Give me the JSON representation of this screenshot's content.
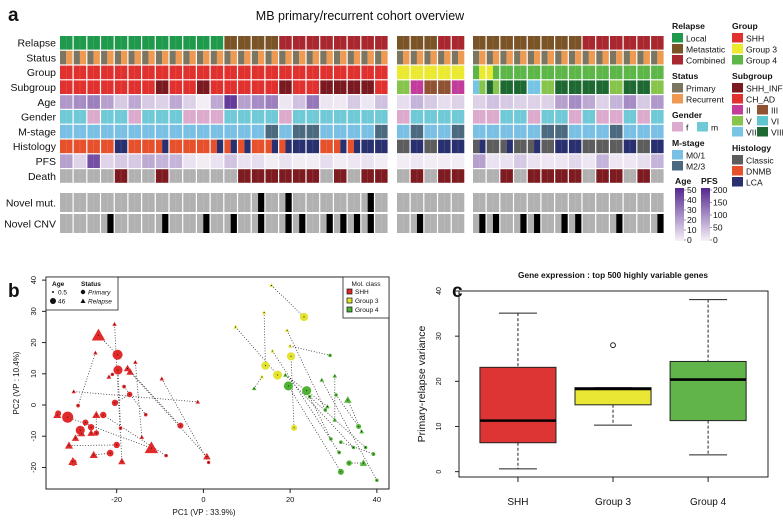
{
  "panel_a": {
    "letter": "a",
    "title": "MB primary/recurrent cohort overview",
    "block_sizes": [
      24,
      5,
      14
    ],
    "rows": [
      {
        "key": "relapse",
        "label": "Relapse",
        "cells": "L L L L L L L L L L L L M M M M C C C C C C C C M M M C C M M M M M M M M C C C C C C"
      },
      {
        "key": "status",
        "label": "Status",
        "cells": "P|R P|R P|R P|R P|R P|R P|R P|R P|R P|R P|R P|R P|R P|R P|R P|R P|R P|R P|R P|R P|R P|R P|R P|R P|R P|R P|R P|R P|R P|R P|R P|R P|R P|R P|R P|R P|R P|R P|R P|R P|R P|R P|R"
      },
      {
        "key": "group",
        "label": "Group",
        "cells": "S S S S S S S S S S S S S S S S S S S S S S S S 3 3 3 3 3 4|3 3|4 4 4 4 4 4 4 4 4 4 4 4 4"
      },
      {
        "key": "subgroup",
        "label": "Subgroup",
        "cells": "A A A A A A A I A A I A A A A A I A A I I I I A V II III III II VII|V VIII|V VIII VIII VII V VIII VIII VIII VIII V VIII VIII V"
      },
      {
        "key": "age",
        "label": "Age",
        "cells": "22 25 28 20 10 18 10 8 18 8 1 18 45 20 25 28 3 12 30 3 2 10 3 12 5 15 10 5 8 8 12 10 8 8 8 20 25 18 8 15 25 10 22"
      },
      {
        "key": "gender",
        "label": "Gender",
        "cells": "m m f m m f m m m f f f m m m m f m m m m m m m f m m m m f f m m f m m f m f f m f m"
      },
      {
        "key": "mstage",
        "label": "M-stage",
        "cells": "0 0 0 0 0 0 0 0 0 0 0 0 0 0 0 2 0 2 2 0 0 0 0 2 0 2 0 0 2 0 0 0 0 0 2 2 0 0 0 2 0 0 0"
      },
      {
        "key": "histology",
        "label": "Histology",
        "cells": "D D D D L D D D|L D D D D|L D|L D|L D D|L D|L L L D D|L D|L L L C L C L L C|L C C|L C C|L C L L C C C L C L"
      },
      {
        "key": "pfs",
        "label": "PFS",
        "cells": "80 30 160 30 40 40 70 60 60 15 5 15 45 15 20 5 15 5 5 20 5 10 15 5 5 10 5 5 5 80 15 15 40 15 10 10 25 10 60 10 10 20 60"
      },
      {
        "key": "death",
        "label": "Death",
        "cells": "A A A A D A A D A A A A A D D D D D D A D A D D A D A D D A A D A D D D D A D D A D A"
      },
      {
        "key": "novel_mut",
        "label": "Novel mut.",
        "cells": "0 0 0 0 0 0 0 0 0 0 0 0 0 0 1 0 1 0 0 0 0 0 1 0 0 0 0 0 0 0 0 0 0 0 0 0 0 0 0 0 0 0 0"
      },
      {
        "key": "novel_cnv",
        "label": "Novel CNV",
        "cells": "0 0 0 1 0 0 0 1 0 0 1 0 1 0 1 0 1 1 0 1 1 1 1 0 0 1 0 0 0 1 1 0 1 1 0 1 1 0 0 1 0 0 1"
      }
    ],
    "palette": {
      "relapse": {
        "L": "#1f9a4c",
        "M": "#7a5327",
        "C": "#a9272f"
      },
      "status": {
        "P": "#7b7662",
        "R": "#ef9a52"
      },
      "group": {
        "S": "#e1312e",
        "3": "#ebe930",
        "4": "#5db748"
      },
      "subgroup": {
        "I": "#7a1a20",
        "A": "#e1312e",
        "II": "#c23c9b",
        "III": "#8f5334",
        "V": "#87c44b",
        "VI": "#5fc6cd",
        "VII": "#76c5e5",
        "VIII": "#1d6931"
      },
      "gender": {
        "f": "#dcaacd",
        "m": "#6fc9d7"
      },
      "mstage": {
        "0": "#7ac0e4",
        "2": "#4b6a80"
      },
      "histology": {
        "C": "#5d5d5d",
        "D": "#e6512c",
        "L": "#28306f"
      },
      "death": {
        "A": "#b1b1b1",
        "D": "#7e1b21"
      },
      "novel": {
        "0": "#b1b1b1",
        "1": "#000000"
      },
      "age_max": 50,
      "pfs_max": 200,
      "ramp_low": "#f6f1f8",
      "ramp_high": "#54278f"
    },
    "legend": {
      "col1": [
        {
          "title": "Relapse",
          "rows": [
            [
              {
                "label": "Local",
                "color": "#1f9a4c"
              }
            ],
            [
              {
                "label": "Metastatic",
                "color": "#7a5327"
              }
            ],
            [
              {
                "label": "Combined",
                "color": "#a9272f"
              }
            ]
          ]
        },
        {
          "title": "Status",
          "rows": [
            [
              {
                "label": "Primary",
                "color": "#7b7662"
              }
            ],
            [
              {
                "label": "Recurrent",
                "color": "#ef9a52"
              }
            ]
          ]
        },
        {
          "title": "Gender",
          "rows": [
            [
              {
                "label": "f",
                "color": "#dcaacd"
              },
              {
                "label": "m",
                "color": "#6fc9d7"
              }
            ]
          ]
        },
        {
          "title": "M-stage",
          "rows": [
            [
              {
                "label": "M0/1",
                "color": "#7ac0e4"
              }
            ],
            [
              {
                "label": "M2/3",
                "color": "#4b6a80"
              }
            ]
          ]
        }
      ],
      "col2": [
        {
          "title": "Group",
          "rows": [
            [
              {
                "label": "SHH",
                "color": "#e1312e"
              }
            ],
            [
              {
                "label": "Group 3",
                "color": "#ebe930"
              }
            ],
            [
              {
                "label": "Group 4",
                "color": "#5db748"
              }
            ]
          ]
        },
        {
          "title": "Subgroup",
          "rows": [
            [
              {
                "label": "SHH_INF",
                "color": "#7a1a20"
              }
            ],
            [
              {
                "label": "CH_AD",
                "color": "#e1312e"
              }
            ],
            [
              {
                "label": "II",
                "color": "#c23c9b"
              },
              {
                "label": "III",
                "color": "#8f5334"
              }
            ],
            [
              {
                "label": "V",
                "color": "#87c44b"
              },
              {
                "label": "VI",
                "color": "#5fc6cd"
              }
            ],
            [
              {
                "label": "VII",
                "color": "#76c5e5"
              },
              {
                "label": "VIII",
                "color": "#1d6931"
              }
            ]
          ]
        },
        {
          "title": "Histology",
          "rows": [
            [
              {
                "label": "Classic",
                "color": "#5d5d5d"
              }
            ],
            [
              {
                "label": "DNMB",
                "color": "#e6512c"
              }
            ],
            [
              {
                "label": "LCA",
                "color": "#28306f"
              }
            ]
          ]
        }
      ],
      "age": {
        "title": "Age",
        "ticks": [
          "50",
          "40",
          "30",
          "20",
          "10",
          "0"
        ]
      },
      "pfs": {
        "title": "PFS",
        "ticks": [
          "200",
          "150",
          "100",
          "50",
          "0"
        ]
      }
    }
  },
  "chart_data": [
    {
      "type": "scatter",
      "letter": "b",
      "xlabel": "PC1 (VP : 33.9%)",
      "ylabel": "PC2 (VP : 10.4%)",
      "xlim": [
        -36.3,
        42.8
      ],
      "ylim": [
        -26.9,
        41
      ],
      "xticks": [
        "-20",
        "0",
        "20",
        "40"
      ],
      "xtick_values": [
        -20,
        0,
        20,
        40
      ],
      "yticks": [
        "-20",
        "-10",
        "0",
        "10",
        "20",
        "30",
        "40"
      ],
      "ytick_values": [
        -20,
        -10,
        0,
        10,
        20,
        30,
        40
      ],
      "legend_age": {
        "title": "Age",
        "items": [
          "0.5",
          "46"
        ]
      },
      "legend_status": {
        "title": "Status",
        "items": [
          "Primary",
          "Relapse"
        ]
      },
      "legend_class": {
        "title": "Mol. class",
        "items": [
          {
            "label": "SHH",
            "color": "#e32a2a"
          },
          {
            "label": "Group 3",
            "color": "#e2e42f"
          },
          {
            "label": "Group 4",
            "color": "#4eb233"
          }
        ]
      },
      "colors": {
        "SHH": "#e32a2a",
        "G3": "#e2e42f",
        "G4": "#4eb233"
      },
      "points": [
        [
          -24.2,
          22.3,
          "SHH",
          "R",
          40
        ],
        [
          -20.5,
          25.9,
          "SHH",
          "R",
          3
        ],
        [
          -24.9,
          16.7,
          "SHH",
          "R",
          3
        ],
        [
          -19.8,
          16.1,
          "SHH",
          "P",
          40
        ],
        [
          -19.7,
          11.2,
          "SHH",
          "P",
          35
        ],
        [
          -17.5,
          11.7,
          "SHH",
          "R",
          15
        ],
        [
          -16.9,
          10.6,
          "SHH",
          "R",
          15
        ],
        [
          -21,
          9.8,
          "SHH",
          "P",
          4
        ],
        [
          -21.8,
          9,
          "SHH",
          "R",
          4
        ],
        [
          -15.7,
          13.7,
          "SHH",
          "R",
          3
        ],
        [
          -29.9,
          4.3,
          "SHH",
          "R",
          3
        ],
        [
          -28.9,
          -0.2,
          "SHH",
          "P",
          5
        ],
        [
          -18.3,
          5.9,
          "SHH",
          "P",
          5
        ],
        [
          -17,
          3.4,
          "SHH",
          "P",
          15
        ],
        [
          -20.4,
          0.7,
          "SHH",
          "P",
          20
        ],
        [
          -19.1,
          -7.4,
          "SHH",
          "P",
          4
        ],
        [
          -13.3,
          -3.1,
          "SHH",
          "P",
          4
        ],
        [
          -9.6,
          8.4,
          "SHH",
          "R",
          3
        ],
        [
          -1.3,
          1,
          "SHH",
          "R",
          3
        ],
        [
          -5.3,
          -6.6,
          "SHH",
          "P",
          18
        ],
        [
          -33.5,
          -2.7,
          "SHH",
          "P",
          18
        ],
        [
          -33.7,
          -3.2,
          "SHH",
          "R",
          18
        ],
        [
          -31.3,
          -3.9,
          "SHH",
          "P",
          46
        ],
        [
          -27.2,
          -5.6,
          "SHH",
          "P",
          18
        ],
        [
          -28.4,
          -8.1,
          "SHH",
          "P",
          35
        ],
        [
          -28.1,
          -9.1,
          "SHH",
          "R",
          15
        ],
        [
          -25.9,
          -7.1,
          "SHH",
          "P",
          20
        ],
        [
          -25.9,
          -9,
          "SHH",
          "R",
          15
        ],
        [
          -24.7,
          -9,
          "SHH",
          "P",
          15
        ],
        [
          -23.1,
          -3.2,
          "SHH",
          "P",
          20
        ],
        [
          -24.7,
          -3.2,
          "SHH",
          "R",
          18
        ],
        [
          -29.5,
          -10.6,
          "SHH",
          "R",
          15
        ],
        [
          -31,
          -13,
          "SHH",
          "R",
          18
        ],
        [
          -20,
          -12.8,
          "SHH",
          "P",
          20
        ],
        [
          -12,
          -13.8,
          "SHH",
          "R",
          40
        ],
        [
          -14.2,
          -10.3,
          "SHH",
          "R",
          3
        ],
        [
          -21.5,
          -15.4,
          "SHH",
          "P",
          22
        ],
        [
          -25.3,
          -16,
          "SHH",
          "R",
          18
        ],
        [
          -18.8,
          -18.1,
          "SHH",
          "R",
          15
        ],
        [
          -30,
          -18.4,
          "SHH",
          "P",
          22
        ],
        [
          -30.1,
          -18.1,
          "SHH",
          "R",
          22
        ],
        [
          -8.6,
          -16.2,
          "SHH",
          "P",
          4
        ],
        [
          0.8,
          -16.5,
          "SHH",
          "R",
          15
        ],
        [
          1.2,
          -18.4,
          "SHH",
          "P",
          3
        ],
        [
          15.7,
          38.3,
          "G3",
          "R",
          2
        ],
        [
          23.2,
          28.2,
          "G3",
          "P",
          30
        ],
        [
          14,
          29.6,
          "G3",
          "R",
          2
        ],
        [
          7.4,
          25,
          "G3",
          "R",
          3
        ],
        [
          14.3,
          12.6,
          "G3",
          "P",
          30
        ],
        [
          19.3,
          23.9,
          "G3",
          "R",
          2
        ],
        [
          20.2,
          15.6,
          "G3",
          "P",
          30
        ],
        [
          17.1,
          9.6,
          "G3",
          "P",
          35
        ],
        [
          13.5,
          9,
          "G3",
          "R",
          2
        ],
        [
          15.9,
          17.3,
          "G3",
          "R",
          2
        ],
        [
          20,
          18.9,
          "G3",
          "R",
          2
        ],
        [
          20.9,
          -7.3,
          "G3",
          "P",
          18
        ],
        [
          29.2,
          15.9,
          "G4",
          "P",
          4
        ],
        [
          19.6,
          6.1,
          "G4",
          "P",
          35
        ],
        [
          23.8,
          4.6,
          "G4",
          "P",
          35
        ],
        [
          18.9,
          9.6,
          "G4",
          "R",
          3
        ],
        [
          11.7,
          5.3,
          "G4",
          "R",
          3
        ],
        [
          27.3,
          8,
          "G4",
          "R",
          3
        ],
        [
          30.3,
          9.3,
          "G4",
          "R",
          3
        ],
        [
          30.6,
          3.2,
          "G4",
          "P",
          4
        ],
        [
          33.3,
          1.6,
          "G4",
          "R",
          15
        ],
        [
          24.5,
          2.7,
          "G4",
          "P",
          4
        ],
        [
          28.6,
          -0.5,
          "G4",
          "R",
          4
        ],
        [
          28.1,
          -1.6,
          "G4",
          "P",
          4
        ],
        [
          30.3,
          -4.8,
          "G4",
          "R",
          3
        ],
        [
          35.8,
          -6.9,
          "G4",
          "P",
          12
        ],
        [
          36.5,
          -8.5,
          "G4",
          "R",
          4
        ],
        [
          29.4,
          -10.9,
          "G4",
          "P",
          4
        ],
        [
          31.7,
          -11.9,
          "G4",
          "P",
          5
        ],
        [
          34.6,
          -13.6,
          "G4",
          "P",
          4
        ],
        [
          37.4,
          -13.6,
          "G4",
          "P",
          4
        ],
        [
          31.3,
          -15.2,
          "G4",
          "P",
          5
        ],
        [
          39.2,
          -15.7,
          "G4",
          "P",
          6
        ],
        [
          33.6,
          -18.6,
          "G4",
          "P",
          15
        ],
        [
          36.9,
          -18.6,
          "G4",
          "R",
          15
        ],
        [
          31.7,
          -21.4,
          "G4",
          "P",
          18
        ],
        [
          40,
          -24.1,
          "G4",
          "P",
          4
        ]
      ],
      "links": [
        [
          0,
          3
        ],
        [
          1,
          38
        ],
        [
          2,
          11
        ],
        [
          10,
          18
        ],
        [
          9,
          35
        ],
        [
          5,
          19
        ],
        [
          6,
          42
        ],
        [
          17,
          43
        ],
        [
          4,
          15
        ],
        [
          12,
          16
        ],
        [
          7,
          8
        ],
        [
          13,
          14
        ],
        [
          22,
          34
        ],
        [
          20,
          21
        ],
        [
          23,
          25
        ],
        [
          24,
          31
        ],
        [
          26,
          27
        ],
        [
          28,
          30
        ],
        [
          29,
          41
        ],
        [
          36,
          37
        ],
        [
          39,
          40
        ],
        [
          32,
          33
        ],
        [
          44,
          45
        ],
        [
          46,
          48
        ],
        [
          47,
          51
        ],
        [
          50,
          55
        ],
        [
          52,
          60
        ],
        [
          54,
          56
        ],
        [
          49,
          67
        ],
        [
          53,
          75
        ],
        [
          57,
          79
        ],
        [
          58,
          71
        ],
        [
          59,
          73
        ],
        [
          61,
          80
        ],
        [
          62,
          68
        ],
        [
          63,
          69
        ],
        [
          64,
          70
        ],
        [
          65,
          74
        ],
        [
          72,
          76
        ],
        [
          77,
          78
        ],
        [
          66,
          59
        ]
      ]
    },
    {
      "type": "box",
      "letter": "c",
      "title": "Gene expression : top 500 highly variable genes",
      "xlabel": "",
      "ylabel": "Primary-relapse variance",
      "ylim": [
        -0.3,
        40
      ],
      "yticks": [
        "0",
        "10",
        "20",
        "30",
        "40"
      ],
      "ytick_values": [
        0,
        10,
        20,
        30,
        40
      ],
      "categories": [
        "SHH",
        "Group 3",
        "Group 4"
      ],
      "colors": [
        "#dd3534",
        "#e9e634",
        "#60b449"
      ],
      "boxes": [
        {
          "min": 0.6,
          "q1": 6.4,
          "median": 11.3,
          "q3": 23.1,
          "max": 35.1,
          "outliers": []
        },
        {
          "min": 10.3,
          "q1": 14.8,
          "median": 18.3,
          "q3": 18.6,
          "max": 18.6,
          "outliers": [
            28
          ]
        },
        {
          "min": 3.7,
          "q1": 11.3,
          "median": 20.4,
          "q3": 24.4,
          "max": 38.1,
          "outliers": []
        }
      ]
    }
  ]
}
